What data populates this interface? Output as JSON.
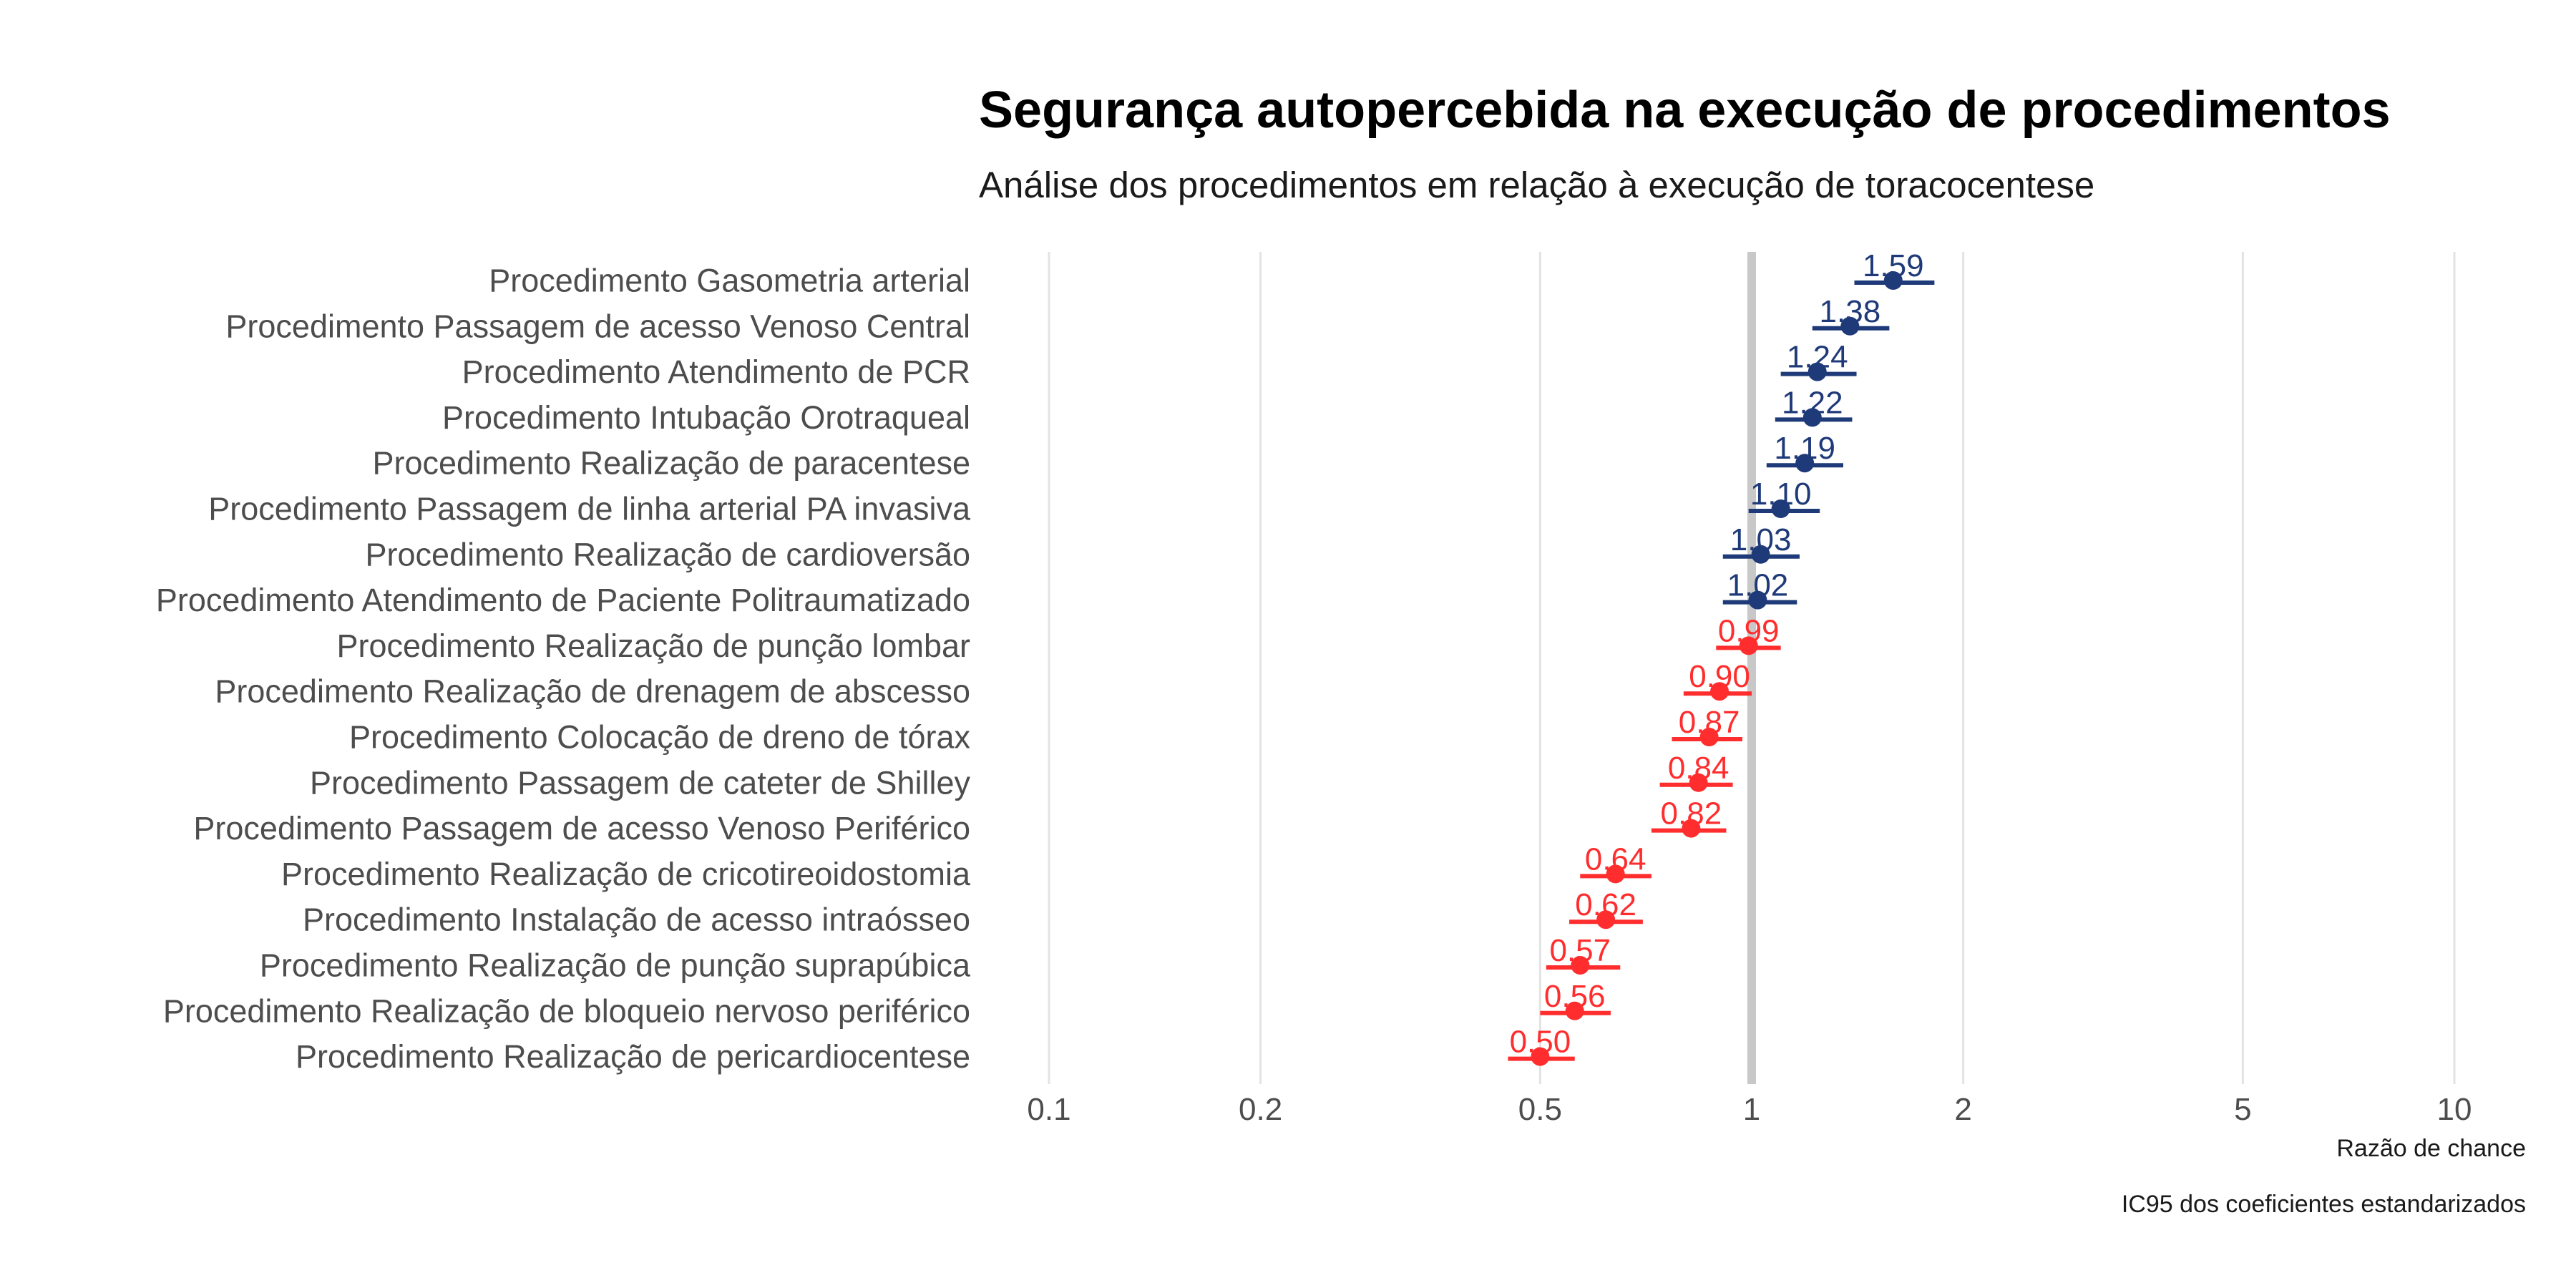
{
  "colors": {
    "positive": "#1f3a78",
    "negative": "#ff2d2d",
    "reference_line": "#c8c8c8",
    "grid": "#e3e3e3"
  },
  "chart_data": {
    "type": "scatter",
    "title": "Segurança autopercebida na execução de procedimentos",
    "subtitle": "Análise dos procedimentos em relação à execução de toracocentese",
    "xlabel": "Razão de chance",
    "caption": "IC95 dos coeficientes estandarizados",
    "x_scale": "log",
    "xlim": [
      0.1,
      10
    ],
    "x_ticks": [
      0.1,
      0.2,
      0.5,
      1,
      2,
      5,
      10
    ],
    "x_tick_labels": [
      "0.1",
      "0.2",
      "0.5",
      "1",
      "2",
      "5",
      "10"
    ],
    "reference_value": 1,
    "grid": "vertical",
    "items": [
      {
        "label": "Procedimento Gasometria arterial",
        "or": 1.59,
        "or_label": "1.59",
        "ci": [
          1.4,
          1.82
        ]
      },
      {
        "label": "Procedimento Passagem de acesso Venoso Central",
        "or": 1.38,
        "or_label": "1.38",
        "ci": [
          1.22,
          1.57
        ]
      },
      {
        "label": "Procedimento Atendimento de PCR",
        "or": 1.24,
        "or_label": "1.24",
        "ci": [
          1.1,
          1.41
        ]
      },
      {
        "label": "Procedimento Intubação Orotraqueal",
        "or": 1.22,
        "or_label": "1.22",
        "ci": [
          1.08,
          1.39
        ]
      },
      {
        "label": "Procedimento Realização de paracentese",
        "or": 1.19,
        "or_label": "1.19",
        "ci": [
          1.05,
          1.35
        ]
      },
      {
        "label": "Procedimento Passagem de linha arterial PA invasiva",
        "or": 1.1,
        "or_label": "1.10",
        "ci": [
          0.99,
          1.25
        ]
      },
      {
        "label": "Procedimento Realização de cardioversão",
        "or": 1.03,
        "or_label": "1.03",
        "ci": [
          0.91,
          1.17
        ]
      },
      {
        "label": "Procedimento Atendimento de Paciente Politraumatizado",
        "or": 1.02,
        "or_label": "1.02",
        "ci": [
          0.91,
          1.16
        ]
      },
      {
        "label": "Procedimento Realização de punção lombar",
        "or": 0.99,
        "or_label": "0.99",
        "ci": [
          0.89,
          1.1
        ]
      },
      {
        "label": "Procedimento Realização de drenagem de abscesso",
        "or": 0.9,
        "or_label": "0.90",
        "ci": [
          0.8,
          1.0
        ]
      },
      {
        "label": "Procedimento Colocação de dreno de tórax",
        "or": 0.87,
        "or_label": "0.87",
        "ci": [
          0.77,
          0.97
        ]
      },
      {
        "label": "Procedimento Passagem de cateter de Shilley",
        "or": 0.84,
        "or_label": "0.84",
        "ci": [
          0.74,
          0.94
        ]
      },
      {
        "label": "Procedimento Passagem de acesso Venoso Periférico",
        "or": 0.82,
        "or_label": "0.82",
        "ci": [
          0.72,
          0.92
        ]
      },
      {
        "label": "Procedimento Realização de cricotireoidostomia",
        "or": 0.64,
        "or_label": "0.64",
        "ci": [
          0.57,
          0.72
        ]
      },
      {
        "label": "Procedimento Instalação de acesso intraósseo",
        "or": 0.62,
        "or_label": "0.62",
        "ci": [
          0.55,
          0.7
        ]
      },
      {
        "label": "Procedimento Realização de punção suprapúbica",
        "or": 0.57,
        "or_label": "0.57",
        "ci": [
          0.51,
          0.65
        ]
      },
      {
        "label": "Procedimento Realização de bloqueio nervoso periférico",
        "or": 0.56,
        "or_label": "0.56",
        "ci": [
          0.5,
          0.63
        ]
      },
      {
        "label": "Procedimento Realização de pericardiocentese",
        "or": 0.5,
        "or_label": "0.50",
        "ci": [
          0.45,
          0.56
        ]
      }
    ]
  }
}
